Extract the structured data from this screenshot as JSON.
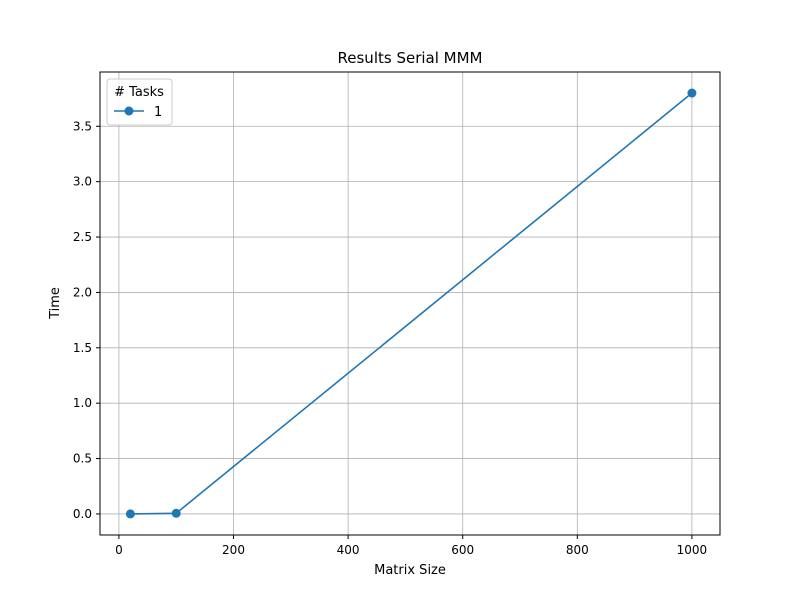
{
  "chart_data": {
    "type": "line",
    "title": "Results Serial MMM",
    "xlabel": "Matrix Size",
    "ylabel": "Time",
    "xlim": [
      -33,
      1049
    ],
    "ylim": [
      -0.19,
      3.99
    ],
    "xticks": [
      0,
      200,
      400,
      600,
      800,
      1000
    ],
    "yticks": [
      0.0,
      0.5,
      1.0,
      1.5,
      2.0,
      2.5,
      3.0,
      3.5
    ],
    "xtick_labels": [
      "0",
      "200",
      "400",
      "600",
      "800",
      "1000"
    ],
    "ytick_labels": [
      "0.0",
      "0.5",
      "1.0",
      "1.5",
      "2.0",
      "2.5",
      "3.0",
      "3.5"
    ],
    "grid": true,
    "legend": {
      "title": "# Tasks",
      "placement": "top-left"
    },
    "series": [
      {
        "name": "1",
        "color": "#1f77b4",
        "marker": "circle",
        "x": [
          20,
          100,
          1000
        ],
        "y": [
          0.0003,
          0.006,
          3.8
        ]
      }
    ]
  }
}
